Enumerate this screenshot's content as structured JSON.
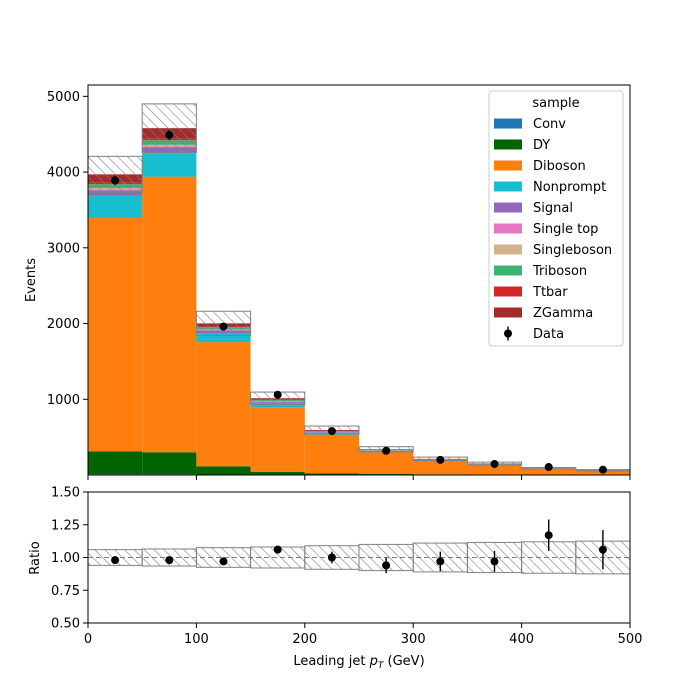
{
  "chart_data": [
    {
      "type": "bar",
      "stacked": true,
      "ylabel": "Events",
      "xlim": [
        0,
        500
      ],
      "ylim": [
        0,
        5150
      ],
      "yticks": [
        1000,
        2000,
        3000,
        4000,
        5000
      ],
      "bin_edges": [
        0,
        50,
        100,
        150,
        200,
        250,
        300,
        350,
        400,
        450,
        500
      ],
      "legend": {
        "title": "sample",
        "placement": "top-right"
      },
      "series": [
        {
          "name": "Conv",
          "color": "#1f77b4",
          "values": [
            10,
            10,
            5,
            3,
            2,
            1,
            1,
            1,
            1,
            0
          ]
        },
        {
          "name": "DY",
          "color": "#006400",
          "values": [
            300,
            290,
            110,
            40,
            18,
            12,
            8,
            5,
            3,
            2
          ]
        },
        {
          "name": "Diboson",
          "color": "#ff7f0e",
          "values": [
            3090,
            3640,
            1640,
            850,
            510,
            290,
            180,
            130,
            75,
            55
          ]
        },
        {
          "name": "Nonprompt",
          "color": "#17becf",
          "values": [
            290,
            310,
            120,
            60,
            30,
            18,
            12,
            8,
            5,
            3
          ]
        },
        {
          "name": "Signal",
          "color": "#9467bd",
          "values": [
            70,
            80,
            35,
            15,
            7,
            4,
            3,
            2,
            1,
            1
          ]
        },
        {
          "name": "Single top",
          "color": "#e377c2",
          "values": [
            10,
            10,
            4,
            2,
            1,
            1,
            1,
            0,
            0,
            0
          ]
        },
        {
          "name": "Singleboson",
          "color": "#d2b48c",
          "values": [
            20,
            20,
            8,
            4,
            2,
            1,
            1,
            1,
            0,
            0
          ]
        },
        {
          "name": "Triboson",
          "color": "#3cb371",
          "values": [
            50,
            60,
            30,
            15,
            8,
            5,
            3,
            2,
            1,
            1
          ]
        },
        {
          "name": "Ttbar",
          "color": "#d62728",
          "values": [
            20,
            20,
            10,
            5,
            3,
            2,
            1,
            1,
            1,
            0
          ]
        },
        {
          "name": "ZGamma",
          "color": "#a52a2a",
          "values": [
            110,
            140,
            40,
            20,
            12,
            6,
            3,
            2,
            1,
            1
          ]
        }
      ],
      "uncertainty_frac": [
        0.06,
        0.07,
        0.08,
        0.08,
        0.09,
        0.1,
        0.11,
        0.12,
        0.12,
        0.13
      ],
      "data_series": {
        "name": "Data",
        "x": [
          25,
          75,
          125,
          175,
          225,
          275,
          325,
          375,
          425,
          475
        ],
        "y": [
          3890,
          4490,
          1960,
          1060,
          580,
          320,
          200,
          145,
          105,
          70
        ],
        "yerr": [
          62,
          67,
          44,
          33,
          24,
          18,
          14,
          12,
          10,
          8
        ]
      }
    },
    {
      "type": "scatter",
      "xlabel": "Leading jet  p_T (GeV)",
      "ylabel": "Ratio",
      "xlim": [
        0,
        500
      ],
      "ylim": [
        0.5,
        1.5
      ],
      "yticks": [
        0.5,
        0.75,
        1.0,
        1.25,
        1.5
      ],
      "ytick_labels": [
        "0.50",
        "0.75",
        "1.00",
        "1.25",
        "1.50"
      ],
      "xticks": [
        0,
        100,
        200,
        300,
        400,
        500
      ],
      "reference_line": 1.0,
      "band_halfwidth": [
        0.06,
        0.065,
        0.075,
        0.08,
        0.09,
        0.1,
        0.11,
        0.115,
        0.12,
        0.125
      ],
      "x": [
        25,
        75,
        125,
        175,
        225,
        275,
        325,
        375,
        425,
        475
      ],
      "y": [
        0.98,
        0.98,
        0.97,
        1.06,
        1.0,
        0.94,
        0.97,
        0.97,
        1.17,
        1.06
      ],
      "yerr": [
        0.02,
        0.02,
        0.025,
        0.03,
        0.045,
        0.06,
        0.075,
        0.08,
        0.12,
        0.15
      ]
    }
  ]
}
